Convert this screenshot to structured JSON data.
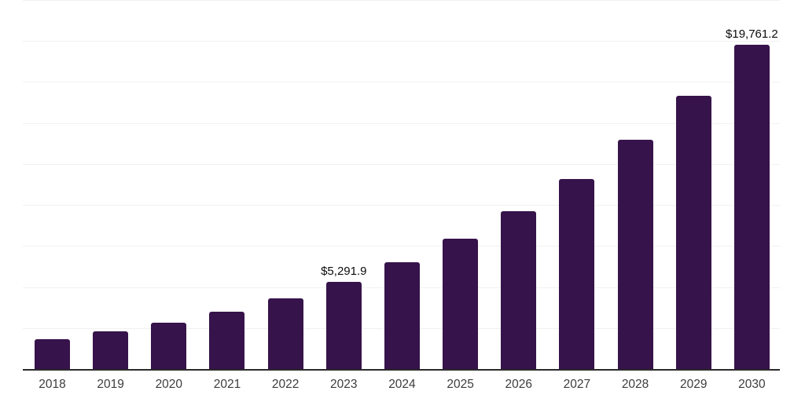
{
  "chart_data": {
    "type": "bar",
    "title": "",
    "xlabel": "",
    "ylabel": "",
    "categories": [
      "2018",
      "2019",
      "2020",
      "2021",
      "2022",
      "2023",
      "2024",
      "2025",
      "2026",
      "2027",
      "2028",
      "2029",
      "2030"
    ],
    "values": [
      1830,
      2300,
      2840,
      3510,
      4330,
      5291.9,
      6490,
      7930,
      9610,
      11580,
      13980,
      16670,
      19761.2
    ],
    "labeled_points": [
      {
        "category": "2023",
        "label": "$5,291.9"
      },
      {
        "category": "2030",
        "label": "$19,761.2"
      }
    ],
    "ylim": [
      0,
      22500
    ],
    "gridline_step": 2500,
    "grid": "horizontal",
    "legend_position": "none",
    "y_tick_labels_visible": false,
    "colors": {
      "bar": "#36134a",
      "gridline": "#f1f1f1",
      "axis_line": "#2a2a2a",
      "value_label": "#0c0c0c",
      "x_tick_label": "#3d3d3d",
      "background": "#ffffff"
    }
  }
}
